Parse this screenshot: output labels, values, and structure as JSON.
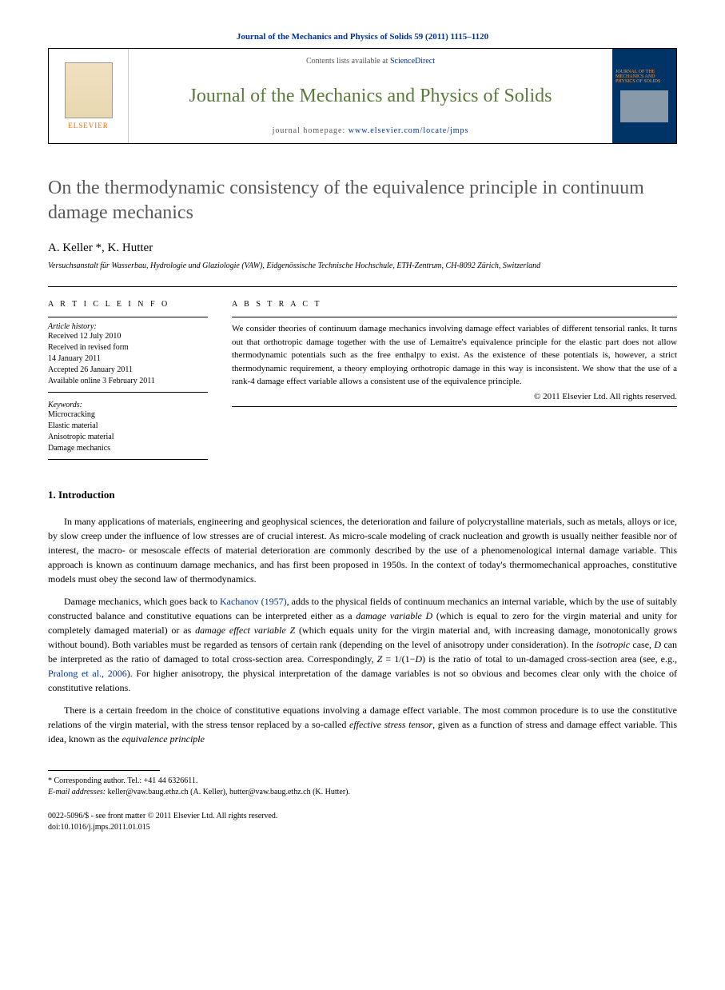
{
  "journal_ref": "Journal of the Mechanics and Physics of Solids 59 (2011) 1115–1120",
  "header": {
    "contents_prefix": "Contents lists available at ",
    "contents_link": "ScienceDirect",
    "journal_name": "Journal of the Mechanics and Physics of Solids",
    "homepage_prefix": "journal homepage: ",
    "homepage_url": "www.elsevier.com/locate/jmps",
    "elsevier_label": "ELSEVIER",
    "cover_text": "JOURNAL OF THE MECHANICS AND PHYSICS OF SOLIDS"
  },
  "title": "On the thermodynamic consistency of the equivalence principle in continuum damage mechanics",
  "authors": "A. Keller *, K. Hutter",
  "affiliation": "Versuchsanstalt für Wasserbau, Hydrologie und Glaziologie (VAW), Eidgenössische Technische Hochschule, ETH-Zentrum, CH-8092 Zürich, Switzerland",
  "info": {
    "label": "A R T I C L E  I N F O",
    "history_label": "Article history:",
    "history": [
      "Received 12 July 2010",
      "Received in revised form",
      "14 January 2011",
      "Accepted 26 January 2011",
      "Available online 3 February 2011"
    ],
    "keywords_label": "Keywords:",
    "keywords": [
      "Microcracking",
      "Elastic material",
      "Anisotropic material",
      "Damage mechanics"
    ]
  },
  "abstract": {
    "label": "A B S T R A C T",
    "text": "We consider theories of continuum damage mechanics involving damage effect variables of different tensorial ranks. It turns out that orthotropic damage together with the use of Lemaitre's equivalence principle for the elastic part does not allow thermodynamic potentials such as the free enthalpy to exist. As the existence of these potentials is, however, a strict thermodynamic requirement, a theory employing orthotropic damage in this way is inconsistent. We show that the use of a rank-4 damage effect variable allows a consistent use of the equivalence principle.",
    "copyright": "© 2011 Elsevier Ltd. All rights reserved."
  },
  "section1": {
    "heading": "1.  Introduction",
    "p1_a": "In many applications of materials, engineering and geophysical sciences, the deterioration and failure of polycrystalline materials, such as metals, alloys or ice, by slow creep under the influence of low stresses are of crucial interest. As micro-scale modeling of crack nucleation and growth is usually neither feasible nor of interest, the macro- or mesoscale effects of material deterioration are commonly described by the use of a phenomenological internal damage variable. This approach is known as continuum damage mechanics, and has first been proposed in 1950s. In the context of today's thermomechanical approaches, constitutive models must obey the second law of thermodynamics.",
    "p2_a": "Damage mechanics, which goes back to ",
    "p2_link1": "Kachanov (1957)",
    "p2_b": ", adds to the physical fields of continuum mechanics an internal variable, which by the use of suitably constructed balance and constitutive equations can be interpreted either as a ",
    "p2_em1": "damage variable D",
    "p2_c": " (which is equal to zero for the virgin material and unity for completely damaged material) or as ",
    "p2_em2": "damage effect variable Z",
    "p2_d": " (which equals unity for the virgin material and, with increasing damage, monotonically grows without bound). Both variables must be regarded as tensors of certain rank (depending on the level of anisotropy under consideration). In the ",
    "p2_em3": "isotropic",
    "p2_e": " case, ",
    "p2_em4": "D",
    "p2_f": " can be interpreted as the ratio of damaged to total cross-section area. Correspondingly, ",
    "p2_em5": "Z",
    "p2_g": " = 1/(1−",
    "p2_em6": "D",
    "p2_h": ") is the ratio of total to un-damaged cross-section area (see, e.g., ",
    "p2_link2": "Pralong et al., 2006",
    "p2_i": "). For higher anisotropy, the physical interpretation of the damage variables is not so obvious and becomes clear only with the choice of constitutive relations.",
    "p3_a": "There is a certain freedom in the choice of constitutive equations involving a damage effect variable. The most common procedure is to use the constitutive relations of the virgin material, with the stress tensor replaced by a so-called ",
    "p3_em1": "effective stress tensor",
    "p3_b": ", given as a function of stress and damage effect variable. This idea, known as the ",
    "p3_em2": "equivalence principle"
  },
  "footnotes": {
    "corr": "* Corresponding author. Tel.: +41 44 6326611.",
    "email_label": "E-mail addresses:",
    "email1": " keller@vaw.baug.ethz.ch (A. Keller), hutter@vaw.baug.ethz.ch (K. Hutter)."
  },
  "bottom": {
    "line1": "0022-5096/$ - see front matter © 2011 Elsevier Ltd. All rights reserved.",
    "line2": "doi:10.1016/j.jmps.2011.01.015"
  },
  "colors": {
    "link": "#003399",
    "journal_green": "#5a7a3a",
    "elsevier_orange": "#ff6600",
    "title_gray": "#585858"
  }
}
